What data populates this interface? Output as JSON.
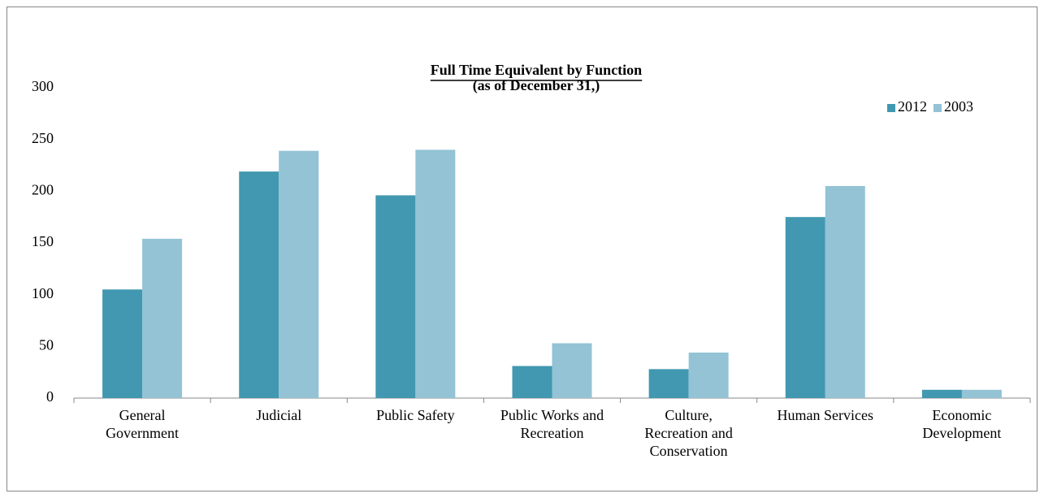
{
  "chart_data": {
    "type": "bar",
    "title": "Full Time Equivalent by Function",
    "subtitle": "(as of December 31,)",
    "categories": [
      "General Government",
      "Judicial",
      "Public Safety",
      "Public Works and Recreation",
      "Culture, Recreation and Conservation",
      "Human Services",
      "Economic Development"
    ],
    "series": [
      {
        "name": "2012",
        "color": "#4198b0",
        "values": [
          105,
          219,
          196,
          31,
          28,
          175,
          8
        ]
      },
      {
        "name": "2003",
        "color": "#93c3d5",
        "values": [
          154,
          239,
          240,
          53,
          44,
          205,
          8
        ]
      }
    ],
    "ylim": [
      0,
      300
    ],
    "yticks": [
      0,
      50,
      100,
      150,
      200,
      250,
      300
    ],
    "grid": false,
    "legend": "top-right"
  }
}
